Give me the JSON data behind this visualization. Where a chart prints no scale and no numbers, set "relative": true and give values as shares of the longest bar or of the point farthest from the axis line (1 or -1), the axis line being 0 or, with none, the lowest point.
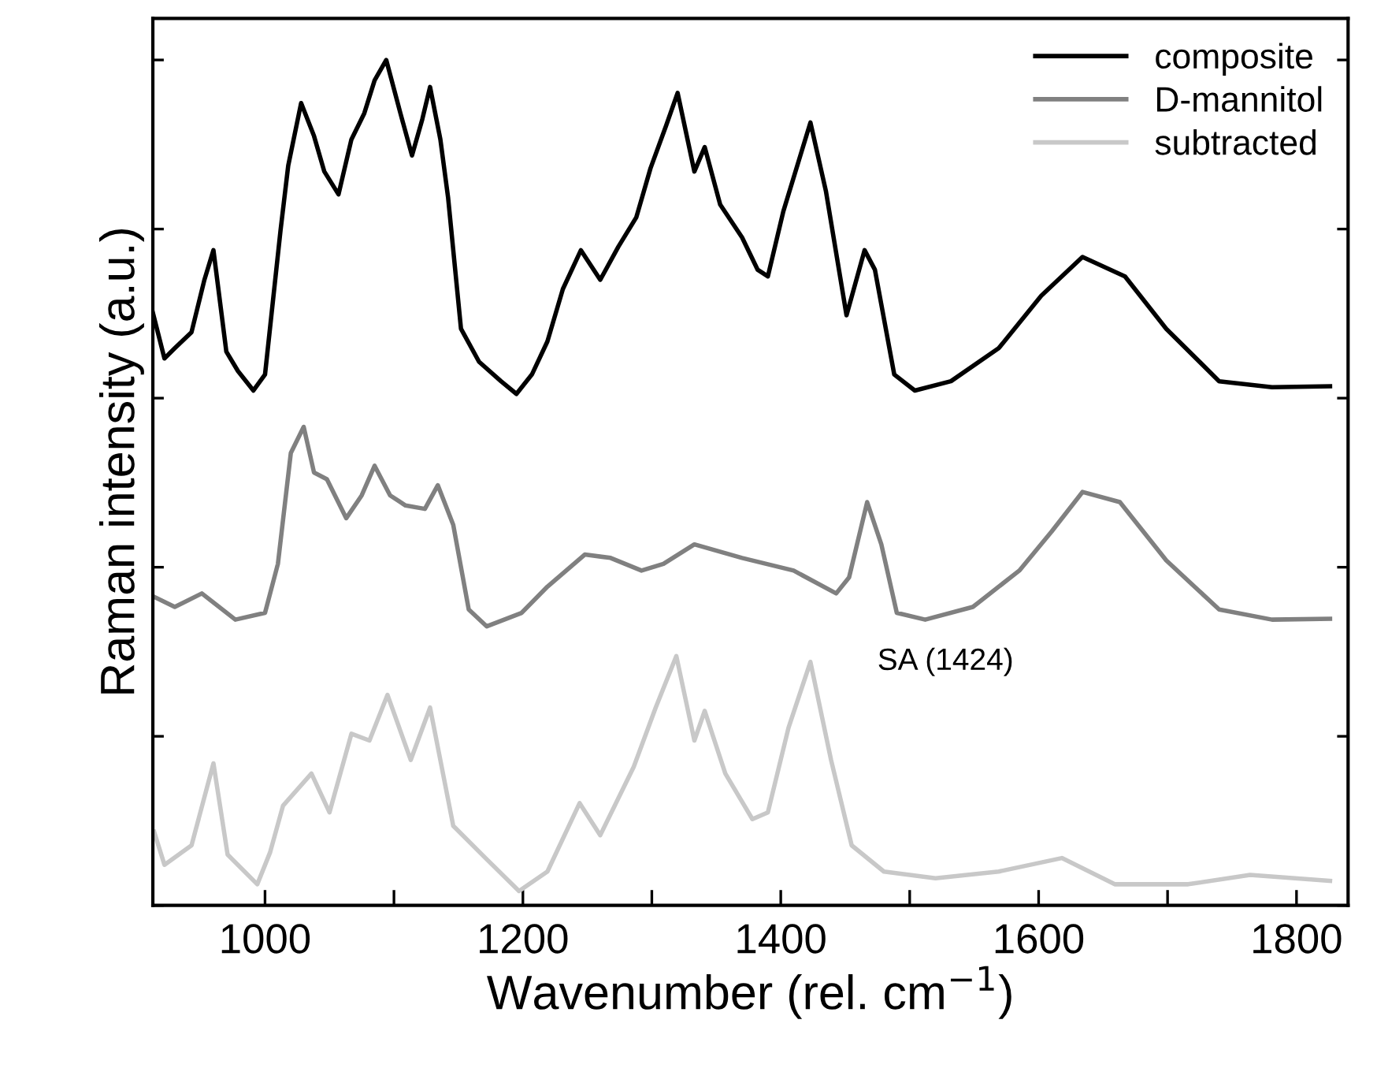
{
  "chart_data": {
    "type": "line",
    "relative": true,
    "xlabel": "Wavenumber (rel. cm$^{−1}$)",
    "ylabel": "Raman intensity (a.u.)",
    "xlim": [
      913,
      1840
    ],
    "xticks": [
      1000,
      {
        "value": 1100,
        "label": null
      },
      1200,
      {
        "value": 1300,
        "label": null
      },
      1400,
      {
        "value": 1500,
        "label": null
      },
      1600,
      {
        "value": 1700,
        "label": null
      },
      1800
    ],
    "tick_labels": "x",
    "legend": "top right",
    "grid": false,
    "marker": "none",
    "line_style": "solid",
    "annotations": [
      {
        "text": "SA (1424)",
        "x": 1424,
        "y": 0.288
      }
    ],
    "series": [
      {
        "name": "composite",
        "color": "#000000",
        "x": [
          913,
          922,
          930,
          943,
          953,
          960,
          970,
          979,
          991,
          1000,
          1012,
          1018,
          1028,
          1038,
          1046,
          1057,
          1067,
          1077,
          1085,
          1094,
          1105,
          1114,
          1122,
          1128,
          1136,
          1142,
          1152,
          1166,
          1183,
          1195,
          1207,
          1219,
          1231,
          1245,
          1260,
          1274,
          1288,
          1299,
          1311,
          1320,
          1333,
          1341,
          1353,
          1370,
          1382,
          1390,
          1402,
          1423,
          1435,
          1451,
          1465,
          1473,
          1488,
          1504,
          1532,
          1569,
          1602,
          1634,
          1667,
          1699,
          1740,
          1781,
          1826
        ],
        "values": [
          0.701,
          0.647,
          0.659,
          0.678,
          0.74,
          0.775,
          0.655,
          0.632,
          0.609,
          0.628,
          0.798,
          0.875,
          0.949,
          0.91,
          0.868,
          0.841,
          0.906,
          0.937,
          0.976,
          1.0,
          0.937,
          0.887,
          0.93,
          0.968,
          0.906,
          0.837,
          0.682,
          0.643,
          0.62,
          0.605,
          0.628,
          0.667,
          0.729,
          0.775,
          0.74,
          0.779,
          0.814,
          0.872,
          0.922,
          0.961,
          0.868,
          0.897,
          0.829,
          0.79,
          0.752,
          0.744,
          0.821,
          0.926,
          0.845,
          0.698,
          0.775,
          0.752,
          0.628,
          0.609,
          0.62,
          0.659,
          0.721,
          0.767,
          0.744,
          0.682,
          0.62,
          0.613,
          0.614
        ]
      },
      {
        "name": "D-mannitol",
        "color": "#808080",
        "x": [
          914,
          930,
          951,
          977,
          1000,
          1010,
          1020,
          1030,
          1038,
          1048,
          1063,
          1075,
          1085,
          1097,
          1109,
          1124,
          1134,
          1146,
          1158,
          1172,
          1199,
          1219,
          1248,
          1268,
          1292,
          1309,
          1333,
          1370,
          1410,
          1443,
          1453,
          1467,
          1478,
          1490,
          1512,
          1549,
          1585,
          1610,
          1634,
          1663,
          1699,
          1740,
          1781,
          1826
        ],
        "values": [
          0.365,
          0.353,
          0.369,
          0.338,
          0.346,
          0.404,
          0.535,
          0.566,
          0.512,
          0.504,
          0.458,
          0.485,
          0.52,
          0.485,
          0.473,
          0.469,
          0.497,
          0.45,
          0.35,
          0.33,
          0.346,
          0.377,
          0.415,
          0.411,
          0.396,
          0.404,
          0.427,
          0.411,
          0.396,
          0.369,
          0.388,
          0.477,
          0.427,
          0.346,
          0.338,
          0.353,
          0.396,
          0.442,
          0.489,
          0.477,
          0.408,
          0.35,
          0.338,
          0.339
        ]
      },
      {
        "name": "subtracted",
        "color": "#c8c8c8",
        "x": [
          914,
          922,
          943,
          960,
          971,
          994,
          1004,
          1014,
          1036,
          1050,
          1067,
          1081,
          1095,
          1113,
          1128,
          1146,
          1171,
          1197,
          1219,
          1244,
          1260,
          1286,
          1303,
          1319,
          1333,
          1341,
          1357,
          1378,
          1390,
          1406,
          1423,
          1439,
          1455,
          1480,
          1520,
          1569,
          1618,
          1659,
          1716,
          1764,
          1826
        ],
        "values": [
          0.087,
          0.048,
          0.071,
          0.168,
          0.06,
          0.025,
          0.063,
          0.118,
          0.156,
          0.11,
          0.203,
          0.195,
          0.249,
          0.172,
          0.234,
          0.094,
          0.056,
          0.017,
          0.04,
          0.121,
          0.083,
          0.164,
          0.234,
          0.295,
          0.195,
          0.23,
          0.156,
          0.102,
          0.11,
          0.21,
          0.288,
          0.172,
          0.071,
          0.04,
          0.032,
          0.04,
          0.056,
          0.025,
          0.025,
          0.036,
          0.029
        ]
      }
    ]
  }
}
